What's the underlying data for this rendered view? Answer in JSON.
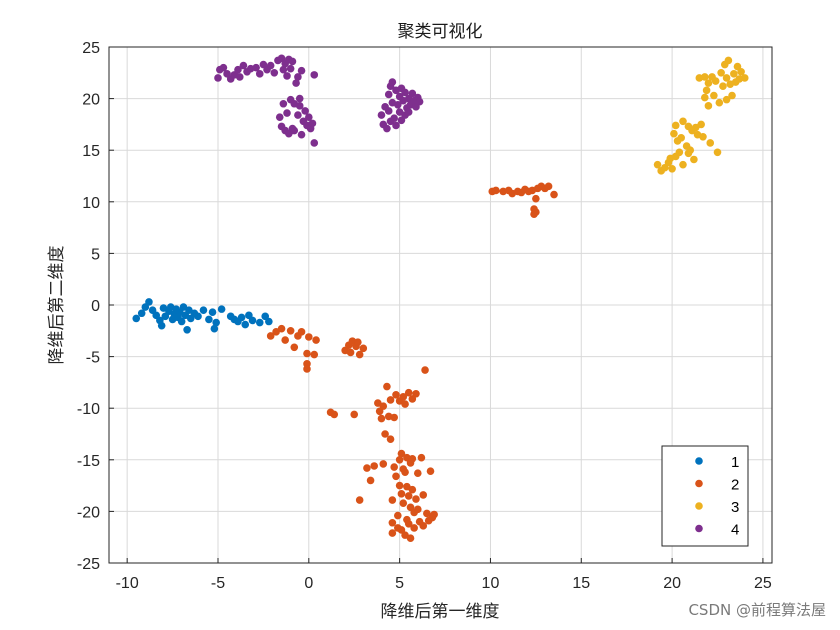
{
  "chart_data": {
    "type": "scatter",
    "title": "聚类可视化",
    "xlabel": "降维后第一维度",
    "ylabel": "降维后第二维度",
    "xlim": [
      -11,
      25.5
    ],
    "ylim": [
      -25,
      25
    ],
    "xticks": [
      -10,
      -5,
      0,
      5,
      10,
      15,
      20,
      25
    ],
    "yticks": [
      -25,
      -20,
      -15,
      -10,
      -5,
      0,
      5,
      10,
      15,
      20,
      25
    ],
    "grid": true,
    "legend_position": "bottom-right",
    "series": [
      {
        "name": "1",
        "color": "#0072BD",
        "points": [
          [
            -9.5,
            -1.3
          ],
          [
            -9.2,
            -0.8
          ],
          [
            -9.0,
            -0.2
          ],
          [
            -8.8,
            0.3
          ],
          [
            -8.6,
            -0.5
          ],
          [
            -8.4,
            -1.0
          ],
          [
            -8.2,
            -1.5
          ],
          [
            -8.1,
            -2.0
          ],
          [
            -8.0,
            -0.3
          ],
          [
            -7.9,
            -1.1
          ],
          [
            -7.7,
            -0.6
          ],
          [
            -7.6,
            -0.2
          ],
          [
            -7.5,
            -1.4
          ],
          [
            -7.4,
            -0.9
          ],
          [
            -7.3,
            -0.4
          ],
          [
            -7.2,
            -1.2
          ],
          [
            -7.1,
            -0.7
          ],
          [
            -7.0,
            -1.6
          ],
          [
            -6.9,
            -0.2
          ],
          [
            -6.8,
            -1.0
          ],
          [
            -6.7,
            -2.4
          ],
          [
            -6.6,
            -0.5
          ],
          [
            -6.5,
            -1.3
          ],
          [
            -6.3,
            -0.8
          ],
          [
            -6.1,
            -1.1
          ],
          [
            -5.8,
            -0.5
          ],
          [
            -5.5,
            -1.4
          ],
          [
            -5.3,
            -0.7
          ],
          [
            -5.2,
            -2.3
          ],
          [
            -5.1,
            -1.7
          ],
          [
            -4.8,
            -0.4
          ],
          [
            -4.3,
            -1.1
          ],
          [
            -4.1,
            -1.4
          ],
          [
            -3.9,
            -1.6
          ],
          [
            -3.7,
            -1.2
          ],
          [
            -3.5,
            -1.9
          ],
          [
            -3.3,
            -1.0
          ],
          [
            -3.1,
            -1.5
          ],
          [
            -2.7,
            -1.7
          ],
          [
            -2.4,
            -1.1
          ],
          [
            -2.2,
            -1.6
          ]
        ]
      },
      {
        "name": "2",
        "color": "#D95319",
        "points": [
          [
            -2.1,
            -3.0
          ],
          [
            -1.8,
            -2.6
          ],
          [
            -1.5,
            -2.3
          ],
          [
            -1.3,
            -3.4
          ],
          [
            -1.0,
            -2.5
          ],
          [
            -0.8,
            -4.1
          ],
          [
            -0.6,
            -3.0
          ],
          [
            -0.4,
            -2.6
          ],
          [
            0.0,
            -3.1
          ],
          [
            -0.1,
            -4.7
          ],
          [
            -0.1,
            -5.7
          ],
          [
            -0.1,
            -6.2
          ],
          [
            0.3,
            -4.8
          ],
          [
            0.4,
            -3.4
          ],
          [
            1.2,
            -10.4
          ],
          [
            1.4,
            -10.6
          ],
          [
            2.0,
            -4.4
          ],
          [
            2.2,
            -3.9
          ],
          [
            2.3,
            -4.6
          ],
          [
            2.4,
            -3.5
          ],
          [
            2.6,
            -4.0
          ],
          [
            2.7,
            -3.6
          ],
          [
            2.8,
            -4.8
          ],
          [
            3.0,
            -4.2
          ],
          [
            2.5,
            -10.6
          ],
          [
            2.8,
            -18.9
          ],
          [
            3.2,
            -15.8
          ],
          [
            3.4,
            -17.0
          ],
          [
            3.6,
            -15.6
          ],
          [
            3.8,
            -9.5
          ],
          [
            3.9,
            -10.3
          ],
          [
            4.0,
            -11.0
          ],
          [
            4.1,
            -9.8
          ],
          [
            4.2,
            -12.5
          ],
          [
            4.1,
            -15.4
          ],
          [
            4.3,
            -7.9
          ],
          [
            4.4,
            -10.8
          ],
          [
            4.5,
            -9.2
          ],
          [
            4.5,
            -13.0
          ],
          [
            4.6,
            -18.9
          ],
          [
            4.6,
            -21.1
          ],
          [
            4.7,
            -10.9
          ],
          [
            4.7,
            -15.7
          ],
          [
            4.6,
            -22.1
          ],
          [
            4.8,
            -8.7
          ],
          [
            4.8,
            -16.6
          ],
          [
            4.9,
            -20.4
          ],
          [
            4.9,
            -21.6
          ],
          [
            5.0,
            -9.3
          ],
          [
            5.0,
            -15.0
          ],
          [
            5.0,
            -17.5
          ],
          [
            5.1,
            -14.4
          ],
          [
            5.1,
            -18.3
          ],
          [
            5.1,
            -21.8
          ],
          [
            5.2,
            -8.9
          ],
          [
            5.2,
            -15.9
          ],
          [
            5.2,
            -19.2
          ],
          [
            5.3,
            -9.6
          ],
          [
            5.3,
            -16.2
          ],
          [
            5.3,
            -22.3
          ],
          [
            5.4,
            -14.8
          ],
          [
            5.4,
            -17.6
          ],
          [
            5.4,
            -20.8
          ],
          [
            5.5,
            -8.5
          ],
          [
            5.5,
            -18.5
          ],
          [
            5.5,
            -21.2
          ],
          [
            5.6,
            -15.3
          ],
          [
            5.6,
            -19.6
          ],
          [
            5.6,
            -22.6
          ],
          [
            5.7,
            -9.1
          ],
          [
            5.7,
            -14.9
          ],
          [
            5.7,
            -17.9
          ],
          [
            5.8,
            -20.1
          ],
          [
            5.8,
            -21.6
          ],
          [
            5.9,
            -8.6
          ],
          [
            5.9,
            -18.8
          ],
          [
            6.0,
            -19.8
          ],
          [
            6.0,
            -16.3
          ],
          [
            6.1,
            -21.0
          ],
          [
            6.2,
            -14.8
          ],
          [
            6.3,
            -18.4
          ],
          [
            6.3,
            -21.4
          ],
          [
            6.4,
            -6.3
          ],
          [
            6.5,
            -20.2
          ],
          [
            6.6,
            -20.9
          ],
          [
            6.7,
            -16.1
          ],
          [
            6.8,
            -20.6
          ],
          [
            6.9,
            -20.3
          ],
          [
            10.1,
            11.0
          ],
          [
            10.3,
            11.1
          ],
          [
            10.7,
            11.0
          ],
          [
            11.0,
            11.1
          ],
          [
            11.2,
            10.8
          ],
          [
            11.5,
            11.0
          ],
          [
            11.7,
            10.9
          ],
          [
            11.9,
            11.2
          ],
          [
            12.1,
            11.0
          ],
          [
            12.3,
            11.1
          ],
          [
            12.4,
            8.8
          ],
          [
            12.4,
            9.3
          ],
          [
            12.5,
            9.0
          ],
          [
            12.5,
            10.3
          ],
          [
            12.6,
            11.3
          ],
          [
            12.8,
            11.5
          ],
          [
            13.0,
            11.3
          ],
          [
            13.2,
            11.5
          ],
          [
            13.5,
            10.7
          ]
        ]
      },
      {
        "name": "3",
        "color": "#EDB120",
        "points": [
          [
            19.2,
            13.6
          ],
          [
            19.4,
            13.0
          ],
          [
            19.6,
            13.3
          ],
          [
            19.8,
            13.8
          ],
          [
            19.9,
            14.2
          ],
          [
            20.0,
            13.2
          ],
          [
            20.1,
            16.6
          ],
          [
            20.2,
            14.4
          ],
          [
            20.2,
            17.4
          ],
          [
            20.3,
            15.9
          ],
          [
            20.4,
            14.8
          ],
          [
            20.5,
            16.2
          ],
          [
            20.6,
            13.6
          ],
          [
            20.6,
            17.8
          ],
          [
            20.8,
            15.4
          ],
          [
            20.9,
            14.7
          ],
          [
            20.9,
            17.3
          ],
          [
            21.0,
            15.0
          ],
          [
            21.1,
            16.9
          ],
          [
            21.2,
            14.1
          ],
          [
            21.3,
            17.2
          ],
          [
            21.4,
            16.5
          ],
          [
            21.5,
            22.0
          ],
          [
            21.6,
            17.5
          ],
          [
            21.7,
            16.3
          ],
          [
            21.8,
            20.1
          ],
          [
            21.8,
            22.1
          ],
          [
            21.9,
            20.8
          ],
          [
            22.0,
            19.3
          ],
          [
            22.0,
            21.5
          ],
          [
            22.1,
            15.7
          ],
          [
            22.2,
            22.1
          ],
          [
            22.3,
            20.3
          ],
          [
            22.4,
            21.7
          ],
          [
            22.5,
            14.8
          ],
          [
            22.6,
            19.6
          ],
          [
            22.7,
            22.5
          ],
          [
            22.8,
            21.2
          ],
          [
            22.9,
            23.3
          ],
          [
            23.0,
            19.9
          ],
          [
            23.0,
            22.0
          ],
          [
            23.1,
            23.7
          ],
          [
            23.2,
            21.4
          ],
          [
            23.3,
            20.3
          ],
          [
            23.4,
            22.4
          ],
          [
            23.5,
            21.6
          ],
          [
            23.6,
            23.1
          ],
          [
            23.7,
            21.9
          ],
          [
            23.8,
            22.6
          ],
          [
            24.0,
            22.0
          ]
        ]
      },
      {
        "name": "4",
        "color": "#7E2F8E",
        "points": [
          [
            -5.0,
            22.0
          ],
          [
            -4.9,
            22.8
          ],
          [
            -4.7,
            23.0
          ],
          [
            -4.5,
            22.4
          ],
          [
            -4.3,
            21.9
          ],
          [
            -4.1,
            22.3
          ],
          [
            -3.9,
            22.8
          ],
          [
            -3.8,
            22.1
          ],
          [
            -3.6,
            23.2
          ],
          [
            -3.4,
            22.6
          ],
          [
            -3.2,
            22.9
          ],
          [
            -2.9,
            23.0
          ],
          [
            -2.7,
            22.4
          ],
          [
            -2.5,
            23.3
          ],
          [
            -2.3,
            22.8
          ],
          [
            -2.1,
            23.2
          ],
          [
            -1.9,
            22.5
          ],
          [
            -1.7,
            23.7
          ],
          [
            -1.5,
            23.9
          ],
          [
            -1.4,
            22.8
          ],
          [
            -1.3,
            23.4
          ],
          [
            -1.2,
            22.2
          ],
          [
            -1.1,
            23.8
          ],
          [
            -1.0,
            22.9
          ],
          [
            -0.9,
            23.6
          ],
          [
            -0.8,
            19.5
          ],
          [
            -0.7,
            21.5
          ],
          [
            -0.6,
            22.1
          ],
          [
            -0.5,
            20.0
          ],
          [
            -0.4,
            22.7
          ],
          [
            -1.6,
            18.2
          ],
          [
            -1.5,
            17.3
          ],
          [
            -1.4,
            19.5
          ],
          [
            -1.3,
            16.9
          ],
          [
            -1.2,
            18.6
          ],
          [
            -1.1,
            16.6
          ],
          [
            -1.0,
            19.9
          ],
          [
            -0.9,
            17.1
          ],
          [
            -0.8,
            16.9
          ],
          [
            -0.6,
            18.4
          ],
          [
            -0.5,
            19.3
          ],
          [
            -0.4,
            16.5
          ],
          [
            -0.3,
            17.8
          ],
          [
            -0.2,
            18.8
          ],
          [
            -0.1,
            17.4
          ],
          [
            0.0,
            18.2
          ],
          [
            0.1,
            17.1
          ],
          [
            0.2,
            17.6
          ],
          [
            0.3,
            15.7
          ],
          [
            0.3,
            22.3
          ],
          [
            4.0,
            18.4
          ],
          [
            4.1,
            17.5
          ],
          [
            4.2,
            19.2
          ],
          [
            4.3,
            17.1
          ],
          [
            4.4,
            20.4
          ],
          [
            4.4,
            18.8
          ],
          [
            4.5,
            21.2
          ],
          [
            4.5,
            17.8
          ],
          [
            4.6,
            19.6
          ],
          [
            4.6,
            21.6
          ],
          [
            4.7,
            18.1
          ],
          [
            4.8,
            20.8
          ],
          [
            4.8,
            17.4
          ],
          [
            4.9,
            19.4
          ],
          [
            5.0,
            20.2
          ],
          [
            5.0,
            18.7
          ],
          [
            5.1,
            21.0
          ],
          [
            5.1,
            17.9
          ],
          [
            5.2,
            19.8
          ],
          [
            5.3,
            20.6
          ],
          [
            5.3,
            18.4
          ],
          [
            5.4,
            19.1
          ],
          [
            5.5,
            20.0
          ],
          [
            5.5,
            18.7
          ],
          [
            5.6,
            19.4
          ],
          [
            5.7,
            20.5
          ],
          [
            5.8,
            19.8
          ],
          [
            5.9,
            19.2
          ],
          [
            6.0,
            20.1
          ],
          [
            6.1,
            19.7
          ]
        ]
      }
    ]
  },
  "watermark": "CSDN @前程算法屋"
}
